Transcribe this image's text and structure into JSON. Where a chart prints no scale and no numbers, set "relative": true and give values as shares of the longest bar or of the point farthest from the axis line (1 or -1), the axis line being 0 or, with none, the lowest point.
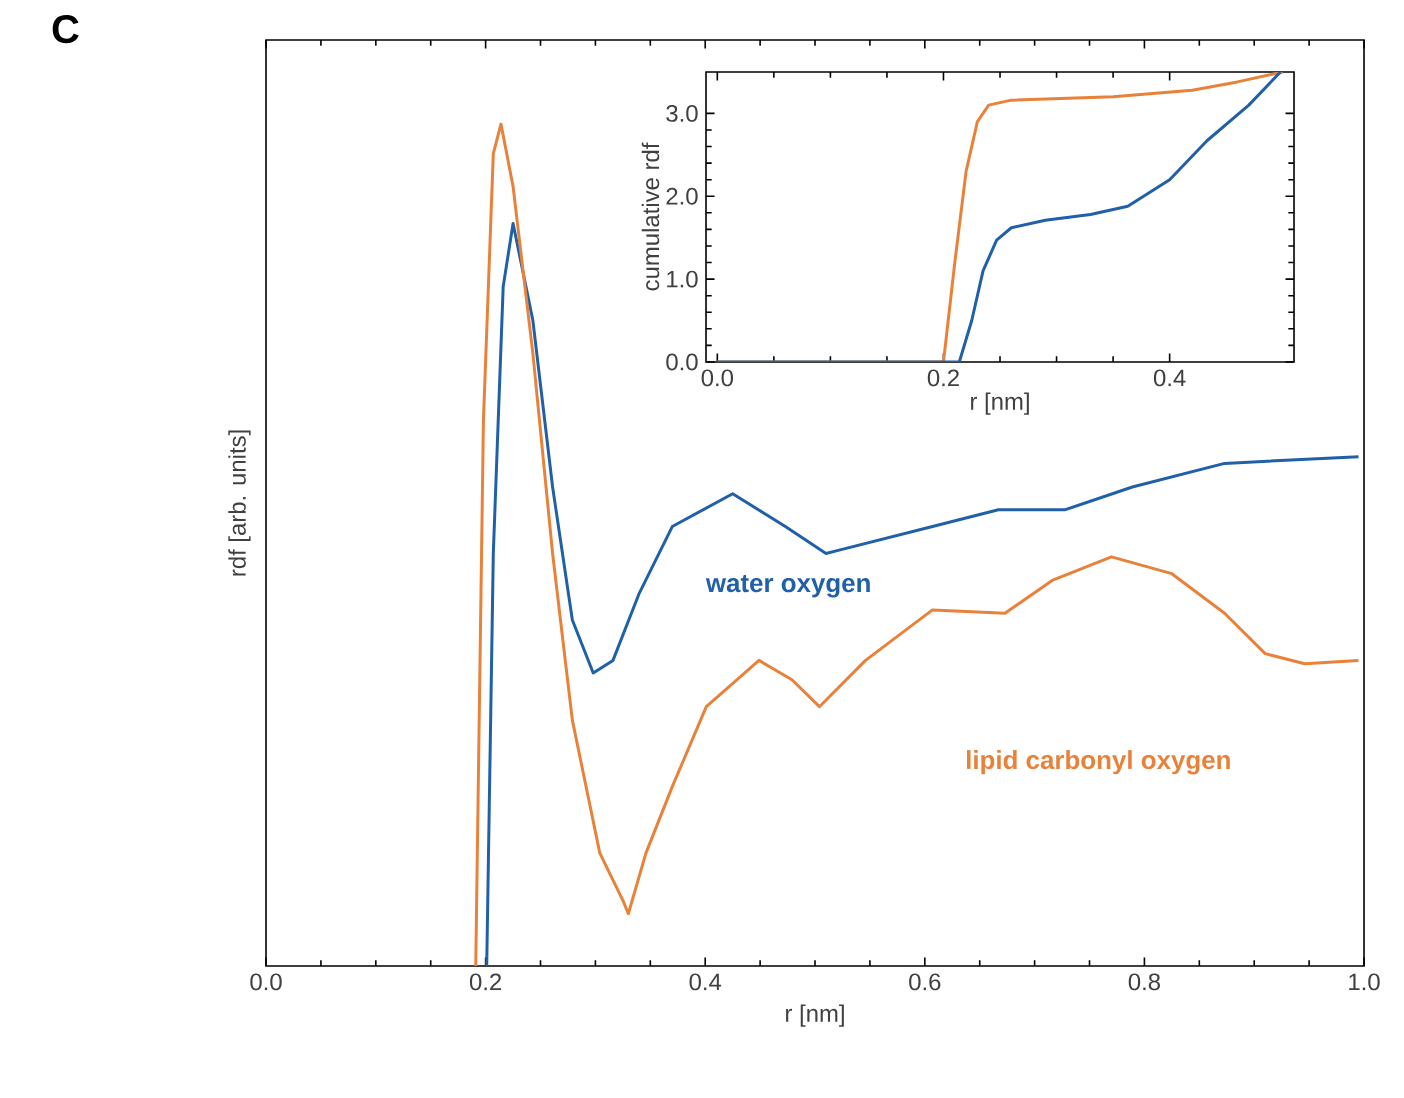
{
  "chart_data": [
    {
      "type": "line",
      "relative": true,
      "xlabel": "r [nm]",
      "ylabel": "rdf [arb. units]",
      "annotations": [
        "C"
      ],
      "xlim": [
        0,
        1
      ],
      "xticks": [
        {
          "value": 0,
          "label": "0.0"
        },
        {
          "value": 0.2,
          "label": "0.2"
        },
        {
          "value": 0.4,
          "label": "0.4"
        },
        {
          "value": 0.6,
          "label": "0.6"
        },
        {
          "value": 0.8,
          "label": "0.8"
        },
        {
          "value": 1,
          "label": "1.0"
        }
      ],
      "series": [
        {
          "name": "water oxygen",
          "color": "#2060a8",
          "x": [
            0.201,
            0.207,
            0.216,
            0.225,
            0.243,
            0.261,
            0.279,
            0.298,
            0.316,
            0.34,
            0.37,
            0.425,
            0.473,
            0.51,
            0.522,
            0.607,
            0.667,
            0.728,
            0.789,
            0.873,
            0.995
          ],
          "values": [
            0,
            0.49,
            0.807,
            0.882,
            0.767,
            0.569,
            0.411,
            0.348,
            0.363,
            0.443,
            0.522,
            0.561,
            0.522,
            0.49,
            0.494,
            0.522,
            0.542,
            0.542,
            0.569,
            0.597,
            0.605
          ]
        },
        {
          "name": "lipid carbonyl oxygen",
          "color": "#e8823a",
          "x": [
            0.191,
            0.198,
            0.207,
            0.214,
            0.225,
            0.243,
            0.261,
            0.279,
            0.304,
            0.325,
            0.33,
            0.346,
            0.37,
            0.401,
            0.449,
            0.479,
            0.504,
            0.546,
            0.607,
            0.673,
            0.716,
            0.77,
            0.825,
            0.873,
            0.91,
            0.946,
            0.995
          ],
          "values": [
            0,
            0.648,
            0.965,
            1,
            0.926,
            0.728,
            0.49,
            0.292,
            0.134,
            0.078,
            0.062,
            0.134,
            0.213,
            0.308,
            0.363,
            0.34,
            0.308,
            0.363,
            0.423,
            0.419,
            0.458,
            0.486,
            0.466,
            0.419,
            0.371,
            0.359,
            0.363
          ]
        }
      ]
    },
    {
      "type": "line",
      "xlabel": "r [nm]",
      "ylabel": "cumulative rdf",
      "xlim": [
        -0.01,
        0.51
      ],
      "xticks": [
        {
          "value": 0,
          "label": "0.0"
        },
        {
          "value": 0.2,
          "label": "0.2"
        },
        {
          "value": 0.4,
          "label": "0.4"
        }
      ],
      "ylim": [
        0,
        3.5
      ],
      "yticks": [
        {
          "value": 0,
          "label": "0.0"
        },
        {
          "value": 1,
          "label": "1.0"
        },
        {
          "value": 2,
          "label": "2.0"
        },
        {
          "value": 3,
          "label": "3.0"
        }
      ],
      "series": [
        {
          "color": "#e8823a",
          "x": [
            0,
            0.2,
            0.21,
            0.22,
            0.23,
            0.24,
            0.26,
            0.35,
            0.42,
            0.46,
            0.5
          ],
          "values": [
            0,
            0,
            1.2,
            2.3,
            2.9,
            3.1,
            3.16,
            3.2,
            3.28,
            3.38,
            3.5
          ]
        },
        {
          "color": "#2060a8",
          "x": [
            0,
            0.214,
            0.225,
            0.235,
            0.247,
            0.26,
            0.29,
            0.33,
            0.363,
            0.4,
            0.433,
            0.47,
            0.498
          ],
          "values": [
            0,
            0,
            0.5,
            1.1,
            1.47,
            1.62,
            1.71,
            1.78,
            1.88,
            2.2,
            2.67,
            3.1,
            3.5
          ]
        }
      ]
    }
  ]
}
